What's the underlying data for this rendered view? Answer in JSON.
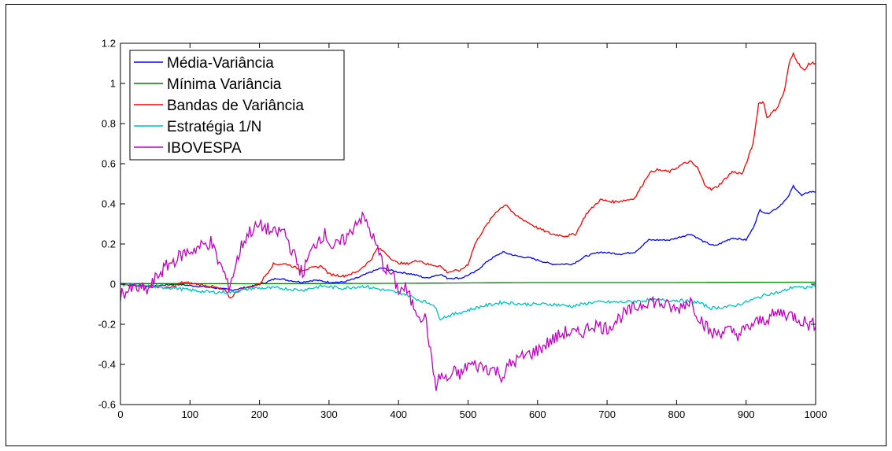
{
  "chart_data": {
    "type": "line",
    "title": "",
    "xlabel": "",
    "ylabel": "",
    "xlim": [
      0,
      1000
    ],
    "ylim": [
      -0.6,
      1.2
    ],
    "xticks": [
      0,
      100,
      200,
      300,
      400,
      500,
      600,
      700,
      800,
      900,
      1000
    ],
    "yticks": [
      -0.6,
      -0.4,
      -0.2,
      0,
      0.2,
      0.4,
      0.6,
      0.8,
      1,
      1.2
    ],
    "xtick_labels": [
      "0",
      "100",
      "200",
      "300",
      "400",
      "500",
      "600",
      "700",
      "800",
      "900",
      "1000"
    ],
    "ytick_labels": [
      "-0.6",
      "-0.4",
      "-0.2",
      "0",
      "0.2",
      "0.4",
      "0.6",
      "0.8",
      "1",
      "1.2"
    ],
    "grid": false,
    "legend_position": "top-left",
    "series": [
      {
        "name": "Média-Variância",
        "color": "#0000ff",
        "points": [
          [
            0,
            0
          ],
          [
            40,
            -0.01
          ],
          [
            80,
            0
          ],
          [
            110,
            -0.01
          ],
          [
            140,
            -0.02
          ],
          [
            160,
            -0.03
          ],
          [
            190,
            -0.01
          ],
          [
            210,
            0.01
          ],
          [
            225,
            0.03
          ],
          [
            240,
            0.02
          ],
          [
            260,
            0.01
          ],
          [
            280,
            0.02
          ],
          [
            300,
            0.01
          ],
          [
            320,
            0.01
          ],
          [
            340,
            0.03
          ],
          [
            360,
            0.06
          ],
          [
            375,
            0.08
          ],
          [
            400,
            0.06
          ],
          [
            420,
            0.05
          ],
          [
            440,
            0.03
          ],
          [
            460,
            0.05
          ],
          [
            470,
            0.03
          ],
          [
            490,
            0.03
          ],
          [
            510,
            0.06
          ],
          [
            530,
            0.12
          ],
          [
            550,
            0.16
          ],
          [
            570,
            0.14
          ],
          [
            590,
            0.13
          ],
          [
            610,
            0.11
          ],
          [
            620,
            0.1
          ],
          [
            650,
            0.1
          ],
          [
            670,
            0.14
          ],
          [
            690,
            0.16
          ],
          [
            720,
            0.15
          ],
          [
            740,
            0.16
          ],
          [
            760,
            0.22
          ],
          [
            790,
            0.22
          ],
          [
            810,
            0.24
          ],
          [
            820,
            0.25
          ],
          [
            840,
            0.21
          ],
          [
            855,
            0.19
          ],
          [
            880,
            0.23
          ],
          [
            900,
            0.22
          ],
          [
            910,
            0.28
          ],
          [
            920,
            0.37
          ],
          [
            930,
            0.35
          ],
          [
            945,
            0.38
          ],
          [
            960,
            0.43
          ],
          [
            968,
            0.49
          ],
          [
            980,
            0.44
          ],
          [
            990,
            0.46
          ],
          [
            1000,
            0.46
          ]
        ]
      },
      {
        "name": "Mínima Variância",
        "color": "#008000",
        "points": [
          [
            0,
            0.003
          ],
          [
            200,
            0.002
          ],
          [
            400,
            0.004
          ],
          [
            600,
            0.008
          ],
          [
            800,
            0.008
          ],
          [
            1000,
            0.01
          ]
        ]
      },
      {
        "name": "Bandas de Variância",
        "color": "#ff0000",
        "points": [
          [
            0,
            0
          ],
          [
            40,
            -0.01
          ],
          [
            70,
            -0.02
          ],
          [
            90,
            0.01
          ],
          [
            110,
            0
          ],
          [
            130,
            -0.01
          ],
          [
            150,
            -0.03
          ],
          [
            158,
            -0.07
          ],
          [
            170,
            -0.03
          ],
          [
            190,
            -0.01
          ],
          [
            200,
            0
          ],
          [
            210,
            0.05
          ],
          [
            220,
            0.1
          ],
          [
            240,
            0.1
          ],
          [
            260,
            0.07
          ],
          [
            275,
            0.08
          ],
          [
            290,
            0.09
          ],
          [
            300,
            0.05
          ],
          [
            320,
            0.04
          ],
          [
            340,
            0.06
          ],
          [
            360,
            0.12
          ],
          [
            370,
            0.18
          ],
          [
            380,
            0.16
          ],
          [
            395,
            0.11
          ],
          [
            410,
            0.1
          ],
          [
            430,
            0.12
          ],
          [
            440,
            0.1
          ],
          [
            460,
            0.09
          ],
          [
            470,
            0.06
          ],
          [
            490,
            0.07
          ],
          [
            500,
            0.1
          ],
          [
            510,
            0.2
          ],
          [
            520,
            0.26
          ],
          [
            540,
            0.36
          ],
          [
            555,
            0.4
          ],
          [
            565,
            0.35
          ],
          [
            580,
            0.32
          ],
          [
            600,
            0.28
          ],
          [
            620,
            0.25
          ],
          [
            640,
            0.24
          ],
          [
            655,
            0.25
          ],
          [
            670,
            0.35
          ],
          [
            690,
            0.42
          ],
          [
            710,
            0.41
          ],
          [
            730,
            0.42
          ],
          [
            740,
            0.43
          ],
          [
            760,
            0.55
          ],
          [
            770,
            0.57
          ],
          [
            790,
            0.56
          ],
          [
            810,
            0.6
          ],
          [
            820,
            0.61
          ],
          [
            830,
            0.58
          ],
          [
            840,
            0.5
          ],
          [
            850,
            0.47
          ],
          [
            860,
            0.49
          ],
          [
            880,
            0.56
          ],
          [
            895,
            0.55
          ],
          [
            910,
            0.7
          ],
          [
            918,
            0.9
          ],
          [
            925,
            0.91
          ],
          [
            930,
            0.83
          ],
          [
            945,
            0.88
          ],
          [
            955,
            0.96
          ],
          [
            962,
            1.1
          ],
          [
            968,
            1.15
          ],
          [
            975,
            1.1
          ],
          [
            985,
            1.06
          ],
          [
            990,
            1.1
          ],
          [
            1000,
            1.1
          ]
        ]
      },
      {
        "name": "Estratégia 1/N",
        "color": "#00c0c0",
        "points": [
          [
            0,
            0
          ],
          [
            40,
            -0.01
          ],
          [
            80,
            -0.02
          ],
          [
            100,
            -0.03
          ],
          [
            130,
            -0.04
          ],
          [
            160,
            -0.04
          ],
          [
            190,
            -0.02
          ],
          [
            230,
            -0.02
          ],
          [
            260,
            -0.03
          ],
          [
            290,
            -0.01
          ],
          [
            320,
            -0.02
          ],
          [
            350,
            -0.01
          ],
          [
            380,
            -0.03
          ],
          [
            410,
            -0.05
          ],
          [
            430,
            -0.08
          ],
          [
            450,
            -0.1
          ],
          [
            460,
            -0.17
          ],
          [
            490,
            -0.14
          ],
          [
            520,
            -0.11
          ],
          [
            550,
            -0.09
          ],
          [
            580,
            -0.1
          ],
          [
            620,
            -0.1
          ],
          [
            650,
            -0.11
          ],
          [
            680,
            -0.09
          ],
          [
            720,
            -0.09
          ],
          [
            760,
            -0.08
          ],
          [
            800,
            -0.08
          ],
          [
            830,
            -0.09
          ],
          [
            850,
            -0.12
          ],
          [
            880,
            -0.11
          ],
          [
            900,
            -0.09
          ],
          [
            930,
            -0.05
          ],
          [
            950,
            -0.04
          ],
          [
            970,
            -0.01
          ],
          [
            980,
            -0.02
          ],
          [
            1000,
            -0.01
          ]
        ]
      },
      {
        "name": "IBOVESPA",
        "color": "#c000c0",
        "points": [
          [
            0,
            -0.05
          ],
          [
            20,
            -0.02
          ],
          [
            40,
            -0.03
          ],
          [
            55,
            0.05
          ],
          [
            70,
            0.1
          ],
          [
            90,
            0.15
          ],
          [
            110,
            0.18
          ],
          [
            130,
            0.21
          ],
          [
            140,
            0.12
          ],
          [
            150,
            0.05
          ],
          [
            155,
            -0.02
          ],
          [
            162,
            0.05
          ],
          [
            175,
            0.2
          ],
          [
            185,
            0.26
          ],
          [
            200,
            0.29
          ],
          [
            210,
            0.28
          ],
          [
            220,
            0.25
          ],
          [
            235,
            0.27
          ],
          [
            245,
            0.18
          ],
          [
            255,
            0.1
          ],
          [
            262,
            0.05
          ],
          [
            270,
            0.13
          ],
          [
            285,
            0.23
          ],
          [
            295,
            0.25
          ],
          [
            305,
            0.18
          ],
          [
            315,
            0.2
          ],
          [
            330,
            0.25
          ],
          [
            340,
            0.32
          ],
          [
            350,
            0.33
          ],
          [
            360,
            0.26
          ],
          [
            370,
            0.17
          ],
          [
            380,
            0.08
          ],
          [
            390,
            0.05
          ],
          [
            400,
            -0.03
          ],
          [
            410,
            -0.02
          ],
          [
            420,
            -0.1
          ],
          [
            430,
            -0.15
          ],
          [
            440,
            -0.18
          ],
          [
            448,
            -0.4
          ],
          [
            455,
            -0.52
          ],
          [
            460,
            -0.45
          ],
          [
            470,
            -0.48
          ],
          [
            480,
            -0.44
          ],
          [
            490,
            -0.45
          ],
          [
            500,
            -0.4
          ],
          [
            520,
            -0.41
          ],
          [
            540,
            -0.43
          ],
          [
            550,
            -0.46
          ],
          [
            560,
            -0.4
          ],
          [
            580,
            -0.36
          ],
          [
            600,
            -0.33
          ],
          [
            620,
            -0.28
          ],
          [
            640,
            -0.24
          ],
          [
            660,
            -0.25
          ],
          [
            680,
            -0.2
          ],
          [
            700,
            -0.22
          ],
          [
            720,
            -0.16
          ],
          [
            740,
            -0.12
          ],
          [
            760,
            -0.08
          ],
          [
            780,
            -0.1
          ],
          [
            800,
            -0.13
          ],
          [
            810,
            -0.1
          ],
          [
            820,
            -0.08
          ],
          [
            830,
            -0.15
          ],
          [
            840,
            -0.2
          ],
          [
            850,
            -0.25
          ],
          [
            870,
            -0.23
          ],
          [
            890,
            -0.25
          ],
          [
            910,
            -0.2
          ],
          [
            930,
            -0.17
          ],
          [
            950,
            -0.14
          ],
          [
            970,
            -0.16
          ],
          [
            990,
            -0.2
          ],
          [
            1000,
            -0.2
          ]
        ]
      }
    ]
  }
}
